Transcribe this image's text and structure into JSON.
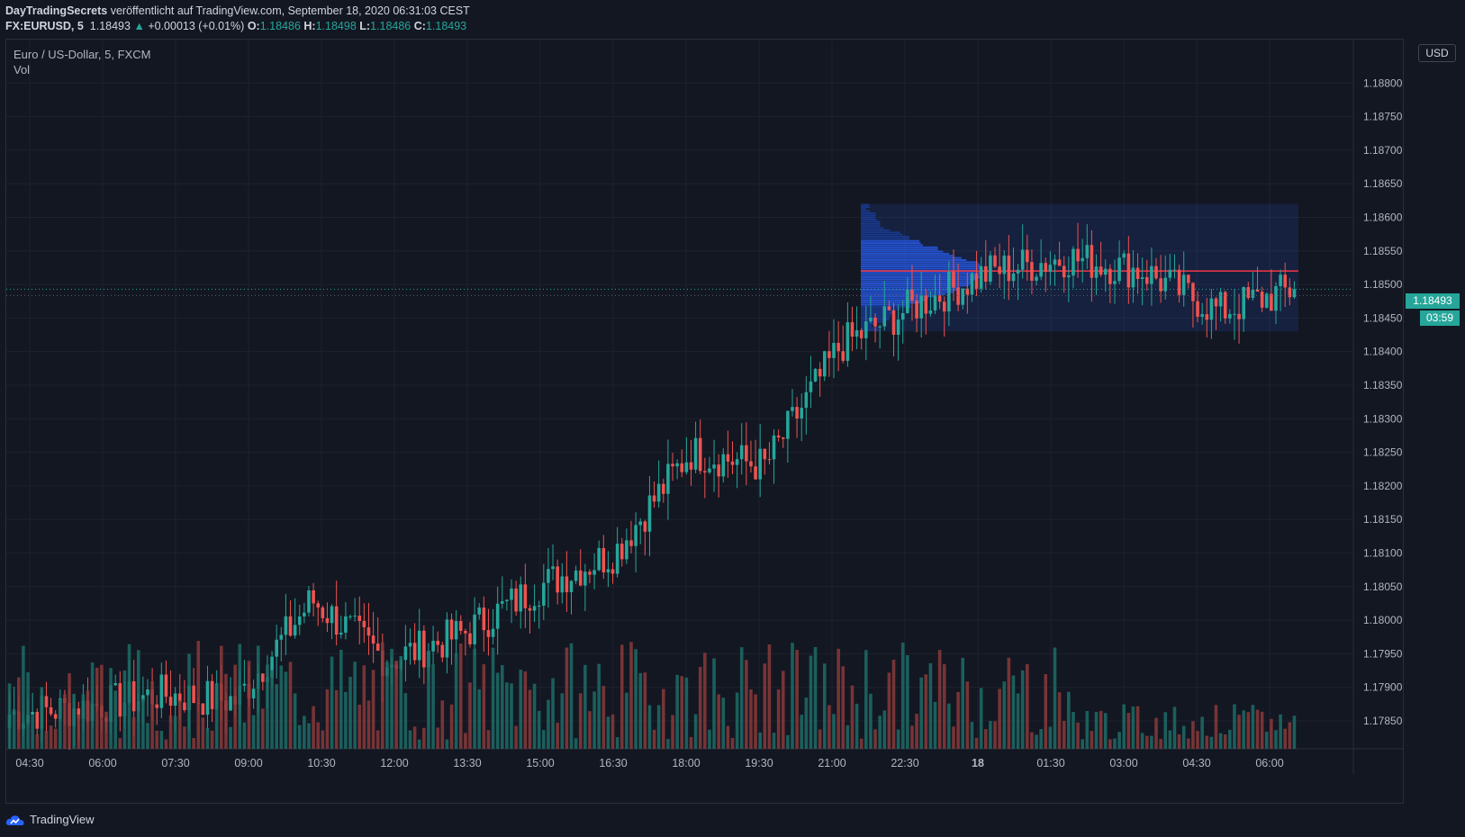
{
  "header": {
    "author": "DayTradingSecrets",
    "published_text": " veröffentlicht auf TradingView.com, September 18, 2020 06:31:03 CEST",
    "symbol": "FX:EURUSD, 5",
    "last_price": "1.18493",
    "change": "+0.00013 (+0.01%)",
    "o_label": "O:",
    "o_value": "1.18486",
    "h_label": "H:",
    "h_value": "1.18498",
    "l_label": "L:",
    "l_value": "1.18486",
    "c_label": "C:",
    "c_value": "1.18493",
    "up_arrow_icon": "triangle-up"
  },
  "legend": {
    "series_title": "Euro / US-Dollar, 5, FXCM",
    "volume_label": "Vol"
  },
  "price_scale": {
    "currency_button": "USD",
    "current_price": "1.18493",
    "countdown": "03:59"
  },
  "footer": {
    "brand": "TradingView",
    "logo_icon": "tradingview-cloud-logo"
  },
  "colors": {
    "background": "#131722",
    "up": "#26a69a",
    "down": "#ef5350",
    "grid": "#1e222d",
    "profile": "#2962ff",
    "poc_line": "#f23645"
  },
  "chart_data": {
    "type": "candlestick",
    "symbol": "FX:EURUSD",
    "interval": "5",
    "y_ticks": [
      "1.17850",
      "1.17900",
      "1.17950",
      "1.18000",
      "1.18050",
      "1.18100",
      "1.18150",
      "1.18200",
      "1.18250",
      "1.18300",
      "1.18350",
      "1.18400",
      "1.18450",
      "1.18500",
      "1.18550",
      "1.18600",
      "1.18650",
      "1.18700",
      "1.18750",
      "1.18800"
    ],
    "ylim": [
      1.1782,
      1.1885
    ],
    "x_ticks": [
      "04:30",
      "06:00",
      "07:30",
      "09:00",
      "10:30",
      "12:00",
      "13:30",
      "15:00",
      "16:30",
      "18:00",
      "19:30",
      "21:00",
      "22:30",
      "18",
      "01:30",
      "03:00",
      "04:30",
      "06:00"
    ],
    "price_path": [
      {
        "t": "04:30",
        "close": 1.1786
      },
      {
        "t": "06:00",
        "close": 1.1787
      },
      {
        "t": "07:30",
        "close": 1.1789
      },
      {
        "t": "09:00",
        "close": 1.1788
      },
      {
        "t": "10:30",
        "close": 1.1803
      },
      {
        "t": "12:00",
        "close": 1.1794
      },
      {
        "t": "13:30",
        "close": 1.1798
      },
      {
        "t": "15:00",
        "close": 1.1805
      },
      {
        "t": "16:30",
        "close": 1.181
      },
      {
        "t": "18:00",
        "close": 1.1825
      },
      {
        "t": "19:30",
        "close": 1.1823
      },
      {
        "t": "21:00",
        "close": 1.1841
      },
      {
        "t": "22:30",
        "close": 1.1847
      },
      {
        "t": "18",
        "close": 1.1852
      },
      {
        "t": "01:30",
        "close": 1.1854
      },
      {
        "t": "03:00",
        "close": 1.1852
      },
      {
        "t": "04:30",
        "close": 1.1846
      },
      {
        "t": "06:00",
        "close": 1.18493
      }
    ],
    "volume_profile": {
      "price_high": 1.1862,
      "price_low": 1.1843,
      "poc_price": 1.1852,
      "start": "21:00",
      "end": "06:00"
    },
    "last_price": 1.18493
  }
}
